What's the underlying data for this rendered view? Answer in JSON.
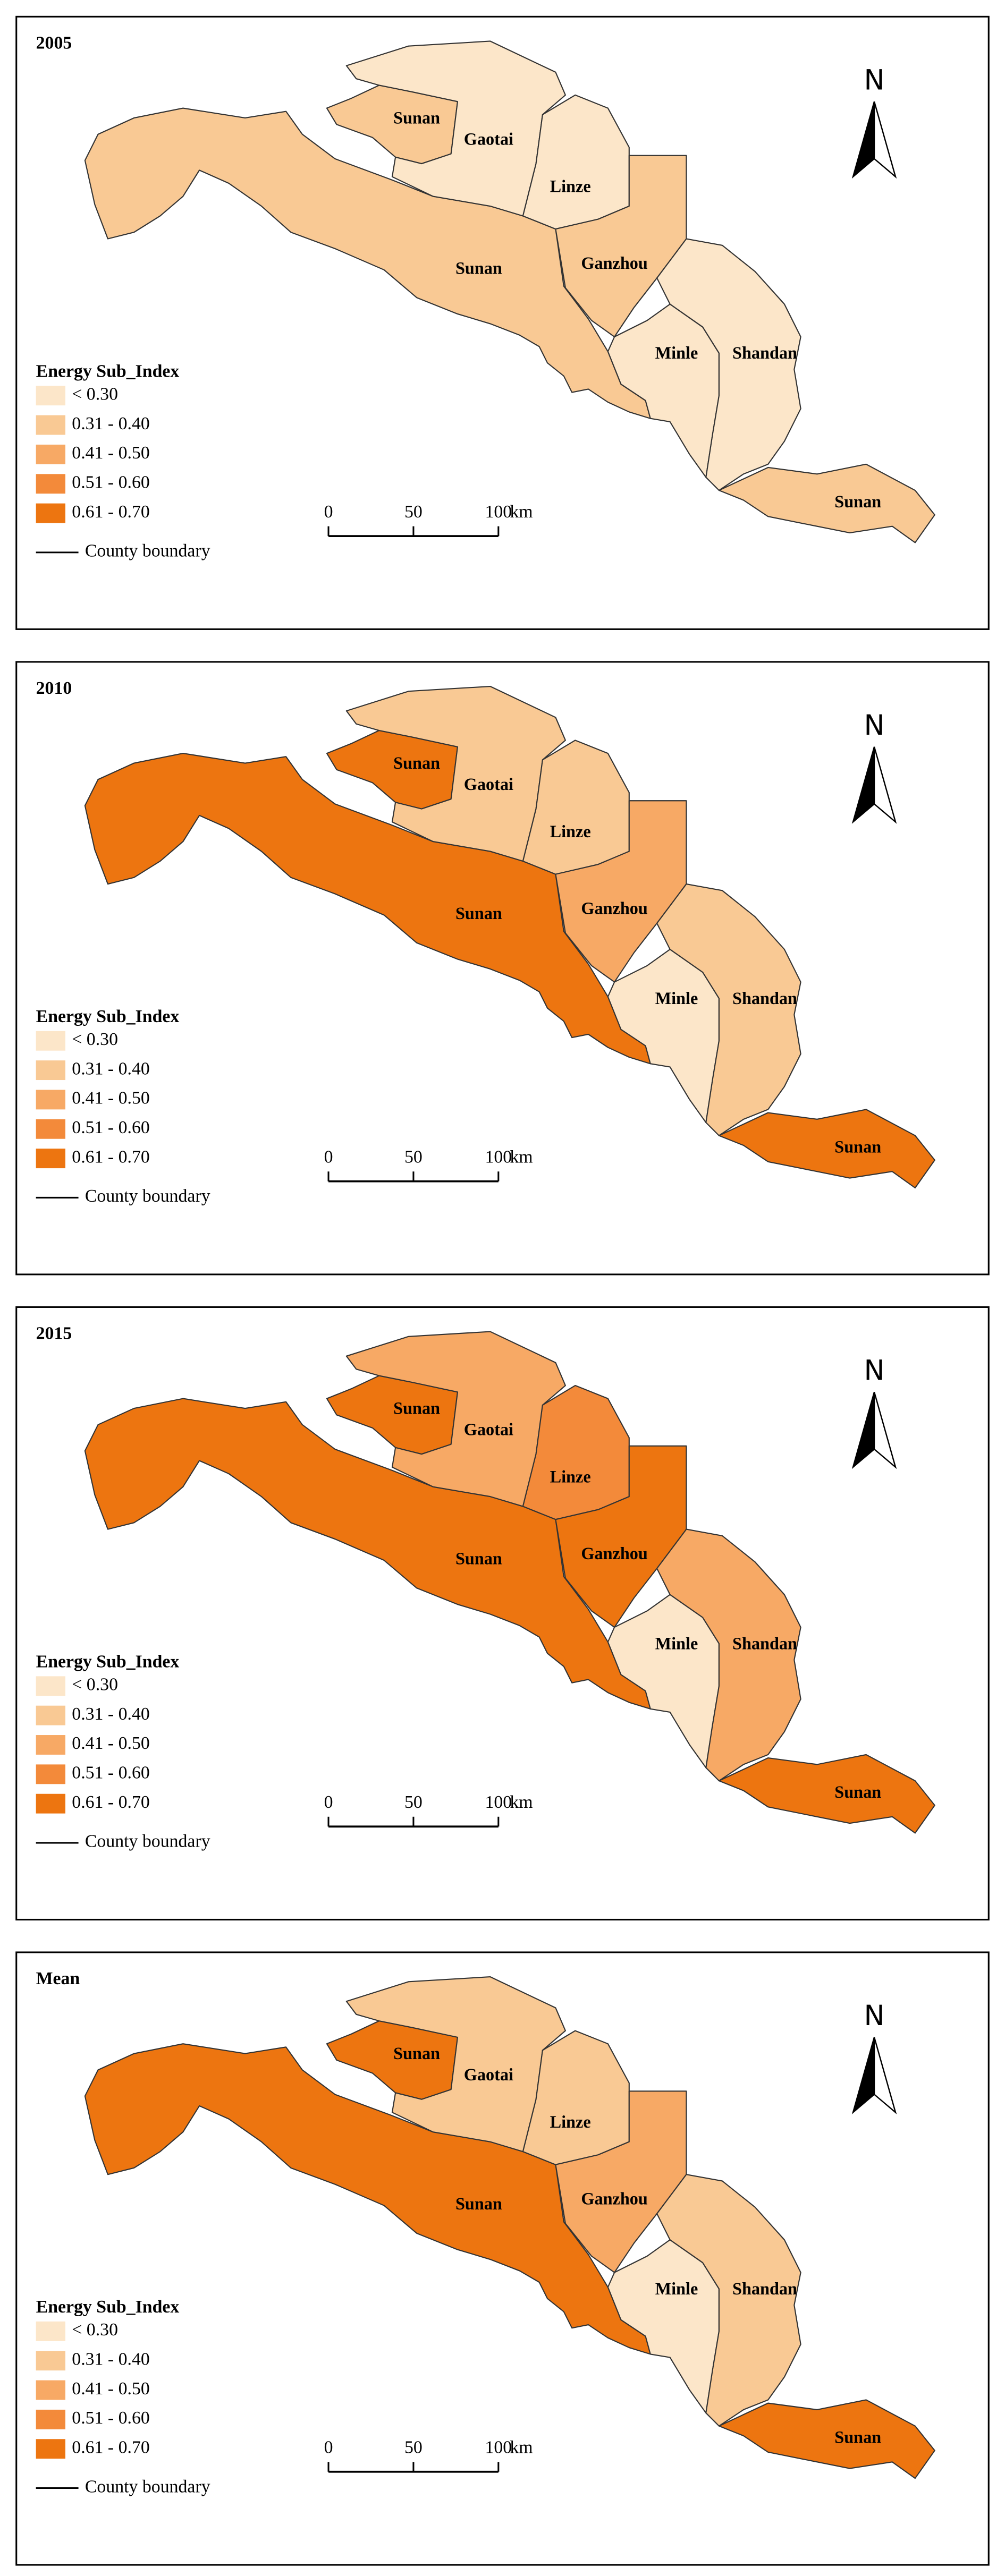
{
  "panels": [
    {
      "title": "2005",
      "regions": [
        {
          "label": "Sunan",
          "color": "#f9c994"
        },
        {
          "label": "Sunan",
          "color": "#f9c994"
        },
        {
          "label": "Gaotai",
          "color": "#fce6c9"
        },
        {
          "label": "Linze",
          "color": "#fce6c9"
        },
        {
          "label": "Ganzhou",
          "color": "#f9c994"
        },
        {
          "label": "Minle",
          "color": "#fce6c9"
        },
        {
          "label": "Shandan",
          "color": "#fce6c9"
        },
        {
          "label": "Sunan",
          "color": "#f9c994"
        }
      ]
    },
    {
      "title": "2010",
      "regions": [
        {
          "label": "Sunan",
          "color": "#ed7510"
        },
        {
          "label": "Sunan",
          "color": "#ed7510"
        },
        {
          "label": "Gaotai",
          "color": "#f9c994"
        },
        {
          "label": "Linze",
          "color": "#f9c994"
        },
        {
          "label": "Ganzhou",
          "color": "#f7a965"
        },
        {
          "label": "Minle",
          "color": "#fce6c9"
        },
        {
          "label": "Shandan",
          "color": "#f9c994"
        },
        {
          "label": "Sunan",
          "color": "#ed7510"
        }
      ]
    },
    {
      "title": "2015",
      "regions": [
        {
          "label": "Sunan",
          "color": "#ed7510"
        },
        {
          "label": "Sunan",
          "color": "#ed7510"
        },
        {
          "label": "Gaotai",
          "color": "#f7a965"
        },
        {
          "label": "Linze",
          "color": "#f38a3a"
        },
        {
          "label": "Ganzhou",
          "color": "#ed7510"
        },
        {
          "label": "Minle",
          "color": "#fce6c9"
        },
        {
          "label": "Shandan",
          "color": "#f7a965"
        },
        {
          "label": "Sunan",
          "color": "#ed7510"
        }
      ]
    },
    {
      "title": "Mean",
      "regions": [
        {
          "label": "Sunan",
          "color": "#ed7510"
        },
        {
          "label": "Sunan",
          "color": "#ed7510"
        },
        {
          "label": "Gaotai",
          "color": "#f9c994"
        },
        {
          "label": "Linze",
          "color": "#f9c994"
        },
        {
          "label": "Ganzhou",
          "color": "#f7a965"
        },
        {
          "label": "Minle",
          "color": "#fce6c9"
        },
        {
          "label": "Shandan",
          "color": "#f9c994"
        },
        {
          "label": "Sunan",
          "color": "#ed7510"
        }
      ]
    }
  ],
  "legend": {
    "title": "Energy Sub_Index",
    "items": [
      {
        "label": "< 0.30",
        "color": "#fce6c9"
      },
      {
        "label": "0.31 - 0.40",
        "color": "#f9c994"
      },
      {
        "label": "0.41 - 0.50",
        "color": "#f7a965"
      },
      {
        "label": "0.51 - 0.60",
        "color": "#f38a3a"
      },
      {
        "label": "0.61 - 0.70",
        "color": "#ed7510"
      }
    ],
    "boundary_label": "County boundary"
  },
  "scale_bar": {
    "labels": [
      "0",
      "50",
      "100"
    ],
    "unit": "km"
  },
  "north": "N"
}
